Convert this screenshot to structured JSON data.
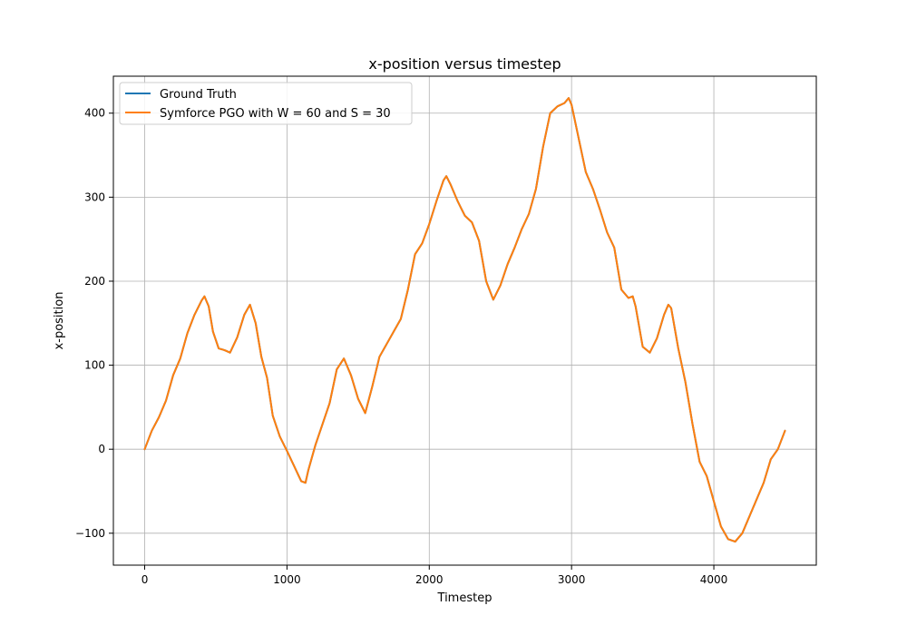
{
  "chart_data": {
    "type": "line",
    "title": "x-position versus timestep",
    "xlabel": "Timestep",
    "ylabel": "x-position",
    "xlim": [
      -220,
      4720
    ],
    "ylim": [
      -138,
      444
    ],
    "xticks": [
      0,
      1000,
      2000,
      3000,
      4000
    ],
    "yticks": [
      -100,
      0,
      100,
      200,
      300,
      400
    ],
    "grid": true,
    "legend_position": "top-left",
    "series": [
      {
        "name": "Ground Truth",
        "color": "#1f77b4",
        "points": [
          [
            0,
            0
          ],
          [
            50,
            22
          ],
          [
            100,
            38
          ],
          [
            150,
            58
          ],
          [
            200,
            88
          ],
          [
            250,
            108
          ],
          [
            300,
            138
          ],
          [
            350,
            160
          ],
          [
            400,
            177
          ],
          [
            420,
            182
          ],
          [
            450,
            170
          ],
          [
            480,
            140
          ],
          [
            520,
            120
          ],
          [
            560,
            118
          ],
          [
            600,
            115
          ],
          [
            650,
            133
          ],
          [
            700,
            160
          ],
          [
            740,
            172
          ],
          [
            780,
            150
          ],
          [
            820,
            110
          ],
          [
            860,
            85
          ],
          [
            900,
            40
          ],
          [
            950,
            15
          ],
          [
            1000,
            -2
          ],
          [
            1050,
            -20
          ],
          [
            1100,
            -38
          ],
          [
            1130,
            -40
          ],
          [
            1150,
            -25
          ],
          [
            1200,
            5
          ],
          [
            1250,
            30
          ],
          [
            1300,
            55
          ],
          [
            1350,
            95
          ],
          [
            1400,
            108
          ],
          [
            1450,
            88
          ],
          [
            1500,
            60
          ],
          [
            1550,
            43
          ],
          [
            1600,
            75
          ],
          [
            1650,
            110
          ],
          [
            1700,
            125
          ],
          [
            1750,
            140
          ],
          [
            1800,
            155
          ],
          [
            1850,
            190
          ],
          [
            1900,
            232
          ],
          [
            1950,
            245
          ],
          [
            2000,
            268
          ],
          [
            2050,
            295
          ],
          [
            2100,
            320
          ],
          [
            2120,
            325
          ],
          [
            2150,
            315
          ],
          [
            2200,
            295
          ],
          [
            2250,
            278
          ],
          [
            2300,
            270
          ],
          [
            2350,
            248
          ],
          [
            2400,
            200
          ],
          [
            2450,
            178
          ],
          [
            2500,
            195
          ],
          [
            2550,
            220
          ],
          [
            2600,
            240
          ],
          [
            2650,
            262
          ],
          [
            2700,
            280
          ],
          [
            2750,
            310
          ],
          [
            2800,
            360
          ],
          [
            2850,
            400
          ],
          [
            2900,
            408
          ],
          [
            2950,
            412
          ],
          [
            2980,
            418
          ],
          [
            3000,
            410
          ],
          [
            3050,
            370
          ],
          [
            3100,
            330
          ],
          [
            3150,
            310
          ],
          [
            3200,
            285
          ],
          [
            3250,
            258
          ],
          [
            3300,
            240
          ],
          [
            3350,
            190
          ],
          [
            3400,
            180
          ],
          [
            3430,
            182
          ],
          [
            3450,
            170
          ],
          [
            3500,
            122
          ],
          [
            3550,
            115
          ],
          [
            3600,
            132
          ],
          [
            3650,
            160
          ],
          [
            3680,
            172
          ],
          [
            3700,
            168
          ],
          [
            3750,
            120
          ],
          [
            3800,
            80
          ],
          [
            3850,
            30
          ],
          [
            3900,
            -15
          ],
          [
            3950,
            -32
          ],
          [
            4000,
            -62
          ],
          [
            4050,
            -92
          ],
          [
            4100,
            -107
          ],
          [
            4150,
            -110
          ],
          [
            4200,
            -100
          ],
          [
            4250,
            -80
          ],
          [
            4300,
            -60
          ],
          [
            4350,
            -40
          ],
          [
            4400,
            -12
          ],
          [
            4450,
            0
          ],
          [
            4500,
            22
          ]
        ]
      },
      {
        "name": "Symforce PGO with W = 60 and S = 30",
        "color": "#ff7f0e",
        "points": [
          [
            0,
            0
          ],
          [
            50,
            22
          ],
          [
            100,
            38
          ],
          [
            150,
            58
          ],
          [
            200,
            88
          ],
          [
            250,
            108
          ],
          [
            300,
            138
          ],
          [
            350,
            160
          ],
          [
            400,
            177
          ],
          [
            420,
            182
          ],
          [
            450,
            170
          ],
          [
            480,
            140
          ],
          [
            520,
            120
          ],
          [
            560,
            118
          ],
          [
            600,
            115
          ],
          [
            650,
            133
          ],
          [
            700,
            160
          ],
          [
            740,
            172
          ],
          [
            780,
            150
          ],
          [
            820,
            110
          ],
          [
            860,
            85
          ],
          [
            900,
            40
          ],
          [
            950,
            15
          ],
          [
            1000,
            -2
          ],
          [
            1050,
            -20
          ],
          [
            1100,
            -38
          ],
          [
            1130,
            -40
          ],
          [
            1150,
            -25
          ],
          [
            1200,
            5
          ],
          [
            1250,
            30
          ],
          [
            1300,
            55
          ],
          [
            1350,
            95
          ],
          [
            1400,
            108
          ],
          [
            1450,
            88
          ],
          [
            1500,
            60
          ],
          [
            1550,
            43
          ],
          [
            1600,
            75
          ],
          [
            1650,
            110
          ],
          [
            1700,
            125
          ],
          [
            1750,
            140
          ],
          [
            1800,
            155
          ],
          [
            1850,
            190
          ],
          [
            1900,
            232
          ],
          [
            1950,
            245
          ],
          [
            2000,
            268
          ],
          [
            2050,
            295
          ],
          [
            2100,
            320
          ],
          [
            2120,
            325
          ],
          [
            2150,
            315
          ],
          [
            2200,
            295
          ],
          [
            2250,
            278
          ],
          [
            2300,
            270
          ],
          [
            2350,
            248
          ],
          [
            2400,
            200
          ],
          [
            2450,
            178
          ],
          [
            2500,
            195
          ],
          [
            2550,
            220
          ],
          [
            2600,
            240
          ],
          [
            2650,
            262
          ],
          [
            2700,
            280
          ],
          [
            2750,
            310
          ],
          [
            2800,
            360
          ],
          [
            2850,
            400
          ],
          [
            2900,
            408
          ],
          [
            2950,
            412
          ],
          [
            2980,
            418
          ],
          [
            3000,
            410
          ],
          [
            3050,
            370
          ],
          [
            3100,
            330
          ],
          [
            3150,
            310
          ],
          [
            3200,
            285
          ],
          [
            3250,
            258
          ],
          [
            3300,
            240
          ],
          [
            3350,
            190
          ],
          [
            3400,
            180
          ],
          [
            3430,
            182
          ],
          [
            3450,
            170
          ],
          [
            3500,
            122
          ],
          [
            3550,
            115
          ],
          [
            3600,
            132
          ],
          [
            3650,
            160
          ],
          [
            3680,
            172
          ],
          [
            3700,
            168
          ],
          [
            3750,
            120
          ],
          [
            3800,
            80
          ],
          [
            3850,
            30
          ],
          [
            3900,
            -15
          ],
          [
            3950,
            -32
          ],
          [
            4000,
            -62
          ],
          [
            4050,
            -92
          ],
          [
            4100,
            -107
          ],
          [
            4150,
            -110
          ],
          [
            4200,
            -100
          ],
          [
            4250,
            -80
          ],
          [
            4300,
            -60
          ],
          [
            4350,
            -40
          ],
          [
            4400,
            -12
          ],
          [
            4450,
            0
          ],
          [
            4500,
            22
          ]
        ]
      }
    ]
  }
}
